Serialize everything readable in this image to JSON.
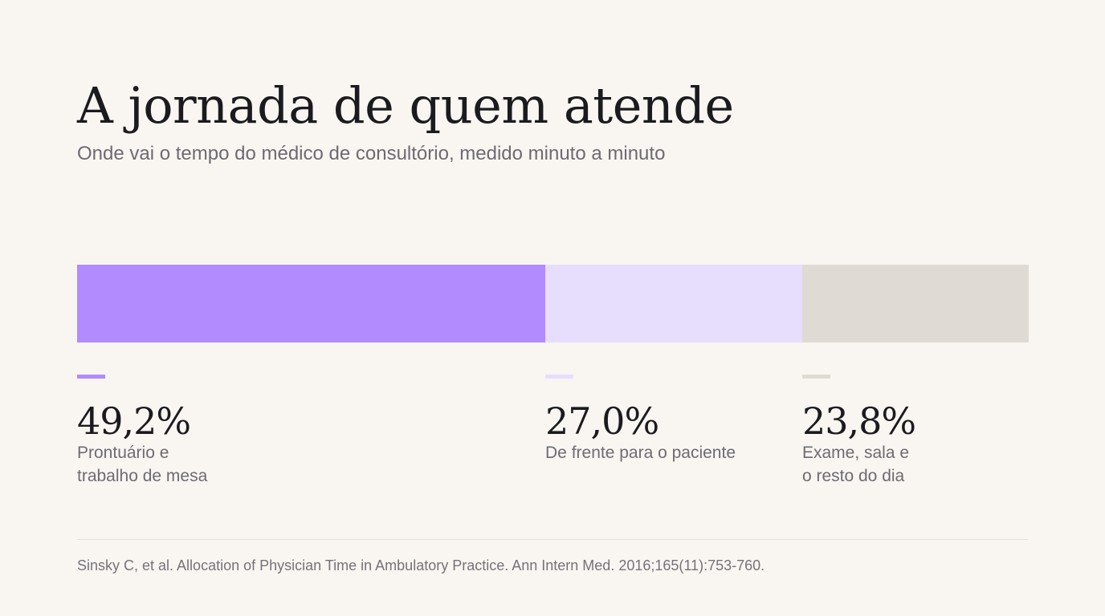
{
  "chart_data": {
    "type": "bar",
    "stacked": true,
    "orientation": "horizontal",
    "title": "A jornada de quem atende",
    "subtitle": "Onde vai o tempo do médico de consultório, medido minuto a minuto",
    "total": 100,
    "segments": [
      {
        "value": 49.2,
        "value_label": "49,2%",
        "label": "Prontuário e\ntrabalho de mesa",
        "color": "#b18bff"
      },
      {
        "value": 27.0,
        "value_label": "27,0%",
        "label": "De frente para o paciente",
        "color": "#e7ddfd"
      },
      {
        "value": 23.8,
        "value_label": "23,8%",
        "label": "Exame, sala e\no resto do dia",
        "color": "#dfdbd4"
      }
    ],
    "source": "Sinsky C, et al. Allocation of Physician Time in Ambulatory Practice. Ann Intern Med. 2016;165(11):753-760."
  }
}
